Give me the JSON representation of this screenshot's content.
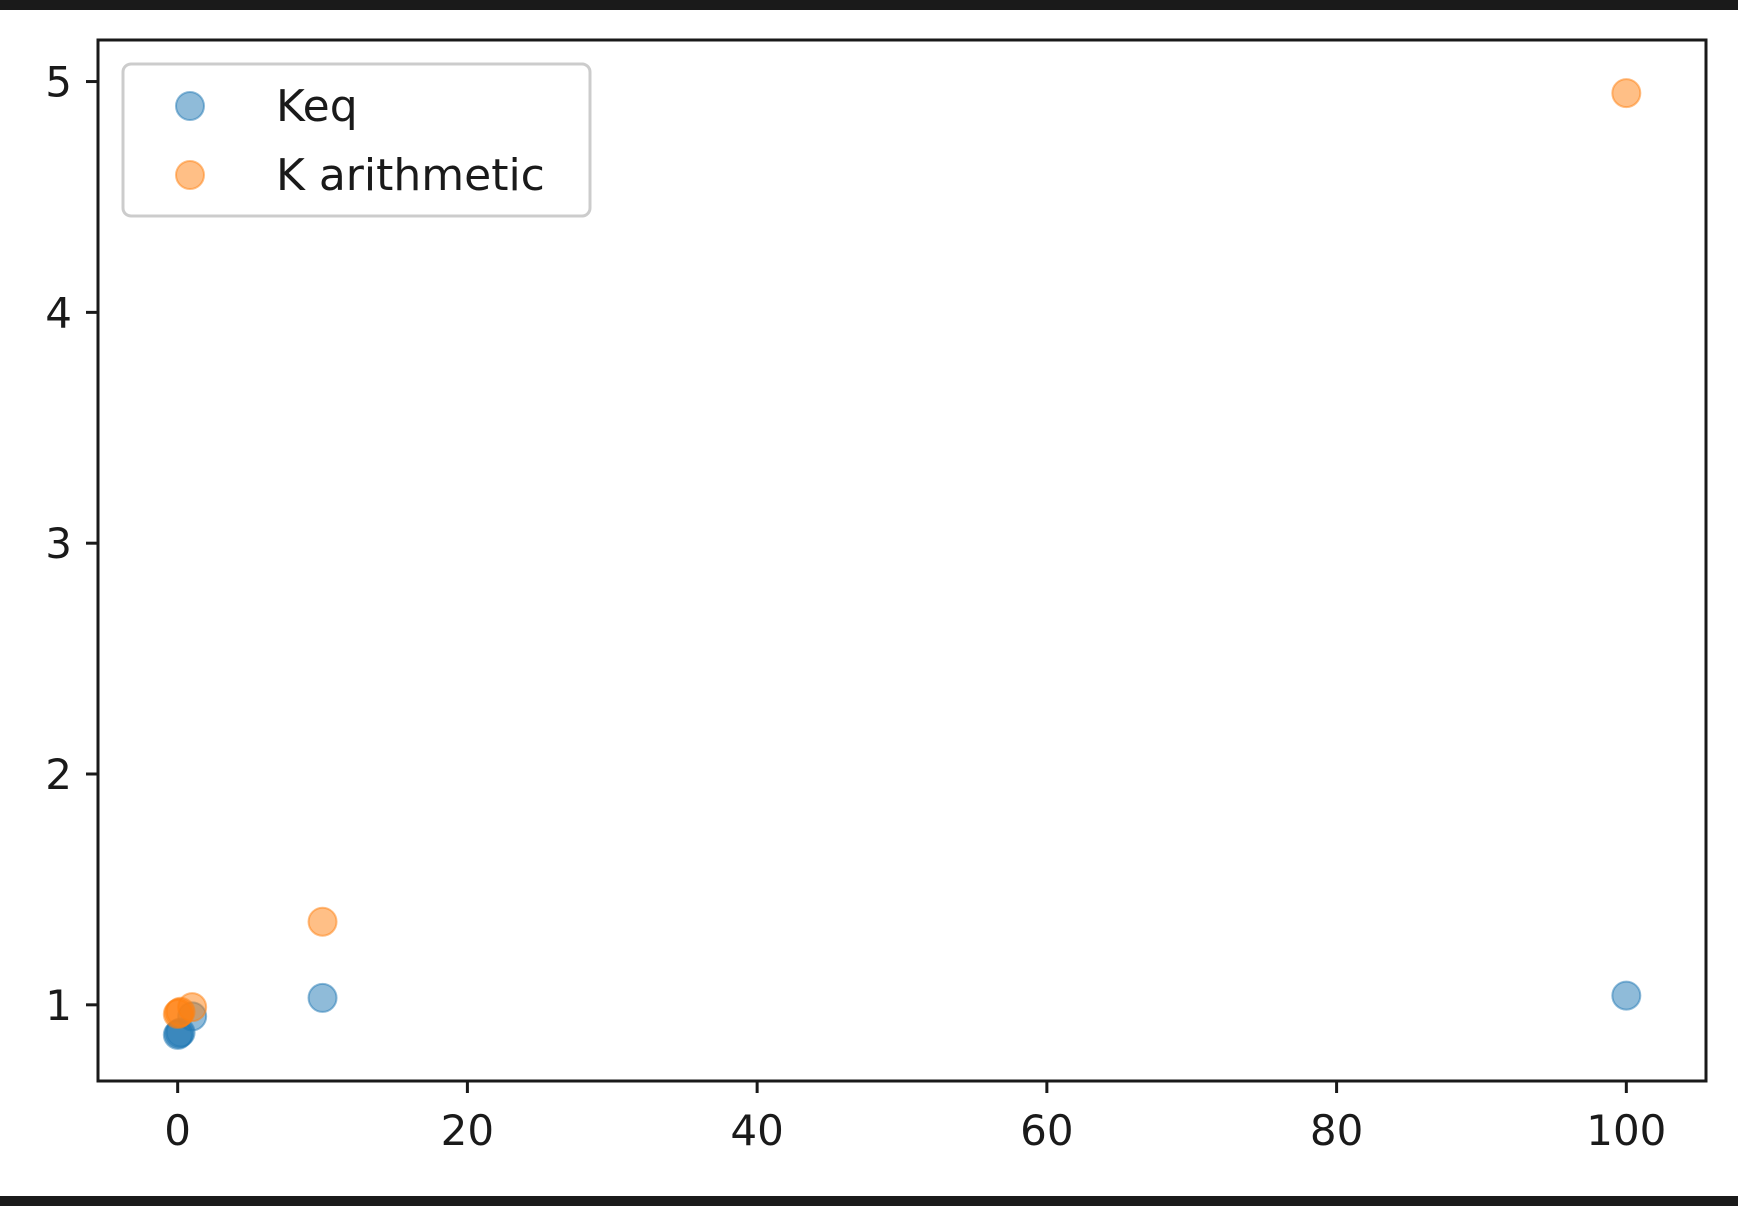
{
  "chart_data": {
    "type": "scatter",
    "title": "",
    "xlabel": "",
    "ylabel": "",
    "xlim": [
      -5.5,
      105.5
    ],
    "ylim": [
      0.67,
      5.18
    ],
    "xticks": [
      0,
      20,
      40,
      60,
      80,
      100
    ],
    "yticks": [
      1,
      2,
      3,
      4,
      5
    ],
    "grid": false,
    "legend_position": "top-left",
    "series": [
      {
        "name": "Keq",
        "color": "#1f77b4",
        "x": [
          0.01,
          0.1,
          0.2,
          1,
          10,
          100
        ],
        "y": [
          0.87,
          0.875,
          0.88,
          0.95,
          1.03,
          1.04
        ]
      },
      {
        "name": "K arithmetic",
        "color": "#ff7f0e",
        "x": [
          0.01,
          0.1,
          0.2,
          1,
          10,
          100
        ],
        "y": [
          0.96,
          0.965,
          0.97,
          0.99,
          1.36,
          4.95
        ]
      }
    ]
  }
}
